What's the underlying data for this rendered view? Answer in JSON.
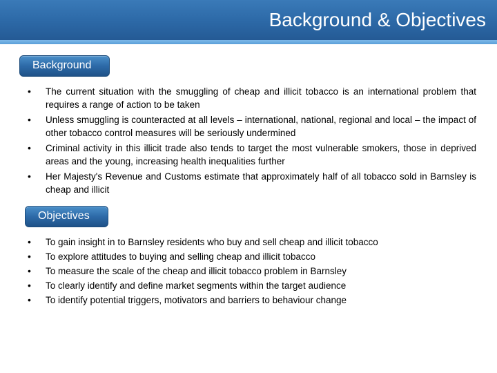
{
  "title": "Background & Objectives",
  "colors": {
    "header_gradient_top": "#3a7ab8",
    "header_gradient_bottom": "#245a95",
    "accent_top": "#7db8e8",
    "accent_bottom": "#5a9fd8",
    "pill_gradient_top": "#4a8fc9",
    "pill_gradient_bottom": "#1f5288",
    "pill_border": "#1a4a7a",
    "text": "#000000",
    "background": "#ffffff"
  },
  "typography": {
    "title_fontsize_pt": 21,
    "pill_fontsize_pt": 12,
    "body_fontsize_pt": 10,
    "font_family": "Verdana"
  },
  "sections": [
    {
      "label": "Background",
      "text_align": "justify",
      "bullets": [
        "The current situation with the smuggling of cheap and illicit tobacco is an international problem that requires a range of action to be taken",
        "Unless smuggling is counteracted at all levels – international, national, regional and local – the impact of other tobacco control measures will be seriously undermined",
        "Criminal activity in this illicit trade also tends to target the most vulnerable smokers, those in deprived areas and the young, increasing health inequalities further",
        "Her Majesty's Revenue and Customs estimate that approximately half of all tobacco sold in Barnsley is cheap and illicit"
      ]
    },
    {
      "label": "Objectives",
      "text_align": "left",
      "bullets": [
        "To gain insight in to Barnsley residents who buy and sell cheap and illicit tobacco",
        "To explore attitudes to buying and selling cheap and illicit tobacco",
        "To measure the scale of the cheap and illicit tobacco problem in Barnsley",
        "To clearly identify and define market segments within the target audience",
        "To identify potential triggers, motivators and barriers to behaviour change"
      ]
    }
  ]
}
